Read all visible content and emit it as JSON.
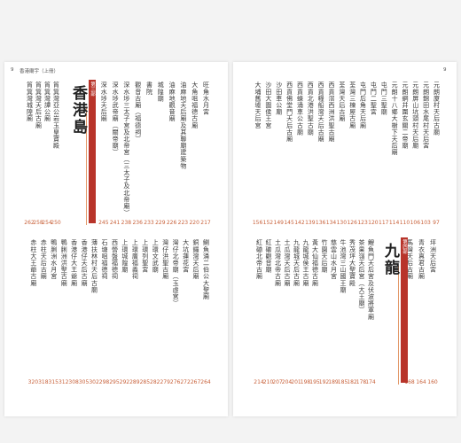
{
  "pages": [
    {
      "header": {
        "page": "9",
        "title": "香港廟宇（上冊）"
      },
      "sections": [
        {
          "entries": [
            {
              "title": "旺角水月宮",
              "page": "217"
            },
            {
              "title": "大角咀福德古廟",
              "page": "220"
            },
            {
              "title": "油麻地天后廟及其聯廟建築物",
              "page": "223"
            },
            {
              "title": "油麻地觀音廟",
              "page": "226"
            },
            {
              "title": "城隍廟",
              "page": "229"
            },
            {
              "title": "書院",
              "page": "233"
            },
            {
              "title": "觀音古廟（福德祠）",
              "page": "236"
            },
            {
              "title": "深水埗三太子宮及北帝宮（三太子及北帝廟）",
              "page": "238"
            },
            {
              "title": "深水埗武帝廟（關帝廟）",
              "page": "241"
            },
            {
              "title": "深水埗天后廟",
              "page": "245"
            }
          ]
        },
        {
          "part": "第三部",
          "region": "香港島",
          "entries": [
            {
              "title": "筲箕灣亞公岩玉皇寶殿",
              "page": "250"
            },
            {
              "title": "筲箕灣譚公廟",
              "page": "254"
            },
            {
              "title": "筲箕灣天后古廟",
              "page": "258"
            },
            {
              "title": "筲箕灣城隍廟",
              "page": "262"
            }
          ]
        },
        {
          "entries": [
            {
              "title": "鰂魚涌二伯公大聖廟",
              "page": "264"
            },
            {
              "title": "銅鑼灣天后廟",
              "page": "267"
            },
            {
              "title": "大坑蓮花宮",
              "page": "272"
            },
            {
              "title": "灣仔北帝廟（玉虛宮）",
              "page": "276"
            },
            {
              "title": "灣仔洪聖古廟",
              "page": "279"
            },
            {
              "title": "上環文武廟",
              "page": "282"
            },
            {
              "title": "上環列聖宮",
              "page": "285"
            },
            {
              "title": "上環廣福義祠",
              "page": "289"
            },
            {
              "title": "上環城隍廟",
              "page": "292"
            },
            {
              "title": "西營盤福德祠",
              "page": "295"
            },
            {
              "title": "石塘咀福德祠",
              "page": "298"
            },
            {
              "title": "薄扶林村天后古廟",
              "page": "302"
            },
            {
              "title": "香港仔天后古廟",
              "page": "305"
            },
            {
              "title": "香港仔大王爺廟",
              "page": "308"
            },
            {
              "title": "鴨脷洲洪聖古廟",
              "page": "312"
            },
            {
              "title": "鴨脷洲水月宮",
              "page": "315"
            },
            {
              "title": "赤柱天后古廟",
              "page": "318"
            },
            {
              "title": "赤柱大王爺古廟",
              "page": "320"
            }
          ]
        }
      ]
    },
    {
      "header": {
        "page": "9"
      },
      "sections": [
        {
          "entries": [
            {
              "title": "元朗廈村天后古廟",
              "page": "97"
            },
            {
              "title": "元朗錦田水尾村天后宮",
              "page": "103"
            },
            {
              "title": "元朗屏山坑頭村天后廟",
              "page": "106"
            },
            {
              "title": "元朗網井圍玄關二帝廟",
              "page": "110"
            },
            {
              "title": "元朗十八鄉大樹下天后廟",
              "page": "114"
            },
            {
              "title": "屯門三聖廟",
              "page": "117"
            },
            {
              "title": "屯門二聖宮",
              "page": "120"
            },
            {
              "title": "屯門后角天后廟",
              "page": "123"
            },
            {
              "title": "荃灣三棟屋古廟",
              "page": "126"
            },
            {
              "title": "荃灣天后古廟",
              "page": "130"
            },
            {
              "title": "西貢滘西洲洪聖古廟",
              "page": "134"
            },
            {
              "title": "西貢糧船灣天后古廟",
              "page": "136"
            },
            {
              "title": "西貢北港洪聖古廟",
              "page": "139"
            },
            {
              "title": "西貢蠔涌車公古廟",
              "page": "142"
            },
            {
              "title": "西貢佛堂門天后古廟",
              "page": "145"
            },
            {
              "title": "沙田車公廟",
              "page": "149"
            },
            {
              "title": "沙田大圍侯王宮",
              "page": "152"
            },
            {
              "title": "大埔舊墟天后宮",
              "page": "156"
            }
          ]
        },
        {
          "entries": [
            {
              "title": "坪洲天后宮",
              "page": "160"
            },
            {
              "title": "青衣真君古廟",
              "page": "164"
            },
            {
              "title": "馬灣天后古廟",
              "page": "168"
            }
          ]
        },
        {
          "part": "第四部",
          "region": "九龍",
          "entries": [
            {
              "title": "鯉魚門天后宮及伏波將軍廟",
              "page": "174"
            },
            {
              "title": "茶果嶺天后宮（大王廟）",
              "page": "178"
            },
            {
              "title": "秀茂坪大聖寶殿",
              "page": "182"
            },
            {
              "title": "牛池灣三山國王廟",
              "page": "185"
            },
            {
              "title": "慈雲山水月宮",
              "page": "189"
            },
            {
              "title": "竹園天后廟",
              "page": "192"
            },
            {
              "title": "黃大仙福德古廟",
              "page": "195"
            },
            {
              "title": "九龍城侯王古廟",
              "page": "198"
            },
            {
              "title": "九龍城天后古廟",
              "page": "201"
            },
            {
              "title": "土瓜灣天后古廟",
              "page": "204"
            },
            {
              "title": "土瓜灣北帝古廟",
              "page": "207"
            },
            {
              "title": "紅磡觀音廟",
              "page": "210"
            },
            {
              "title": "紅磡北帝古廟",
              "page": "214"
            }
          ]
        }
      ]
    }
  ]
}
